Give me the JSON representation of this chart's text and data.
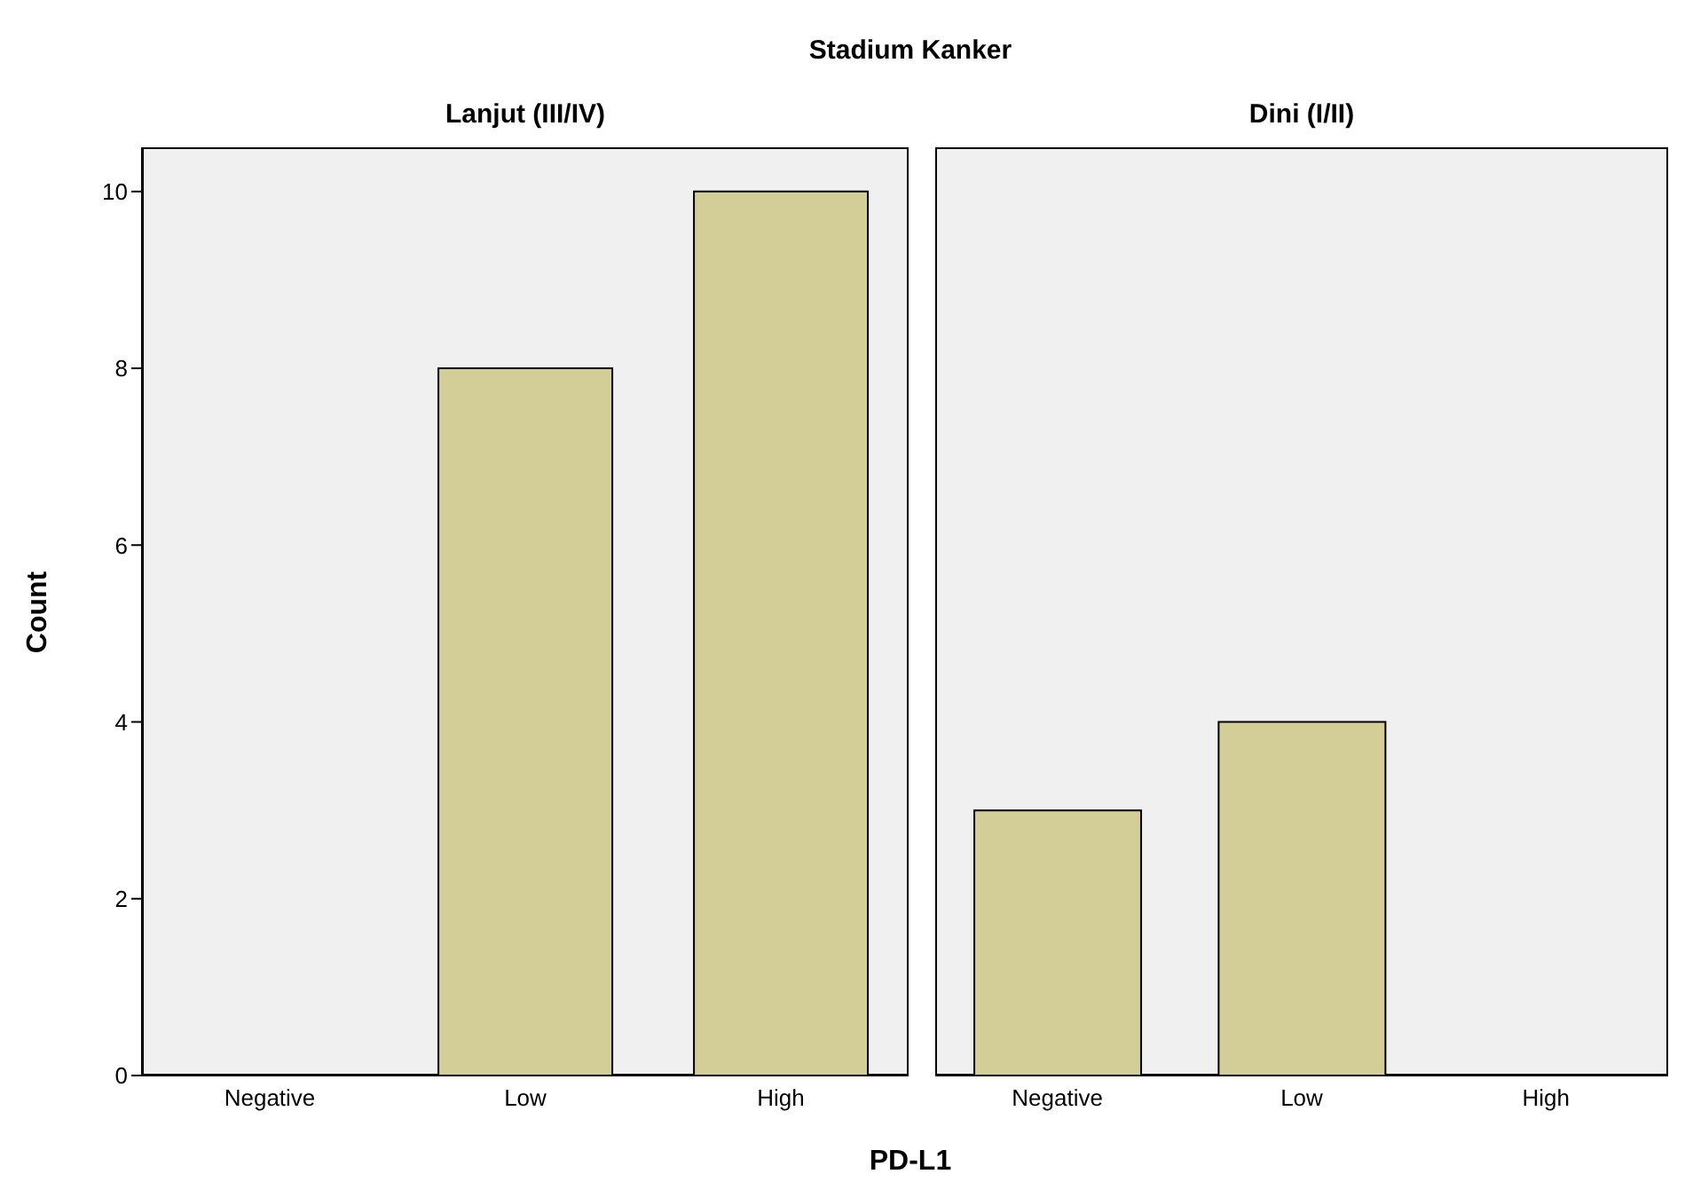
{
  "chart_data": [
    {
      "type": "bar",
      "title": "Lanjut (III/IV)",
      "annotations": [
        "Stadium Kanker"
      ],
      "xlabel": "PD-L1",
      "ylabel": "Count",
      "categories": [
        "Negative",
        "Low",
        "High"
      ],
      "values": [
        0,
        8,
        10
      ],
      "color": "#d3ce97",
      "ylim": [
        0,
        10.5
      ],
      "yticks": [
        0,
        2,
        4,
        6,
        8,
        10
      ]
    },
    {
      "type": "bar",
      "title": "Dini (I/II)",
      "categories": [
        "Negative",
        "Low",
        "High"
      ],
      "values": [
        3,
        4,
        0
      ],
      "color": "#d3ce97",
      "ylim": [
        0,
        10.5
      ],
      "yticks": [
        0,
        2,
        4,
        6,
        8,
        10
      ],
      "tick_labels": "x"
    }
  ]
}
